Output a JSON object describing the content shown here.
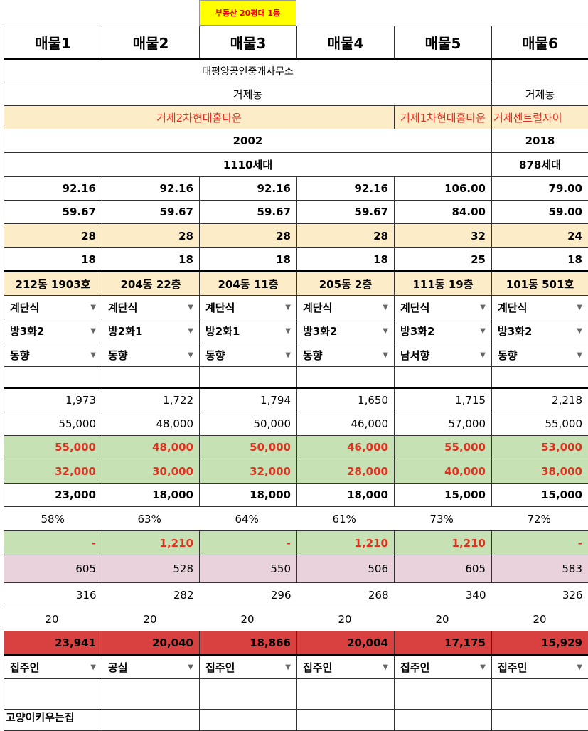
{
  "banner": "부동산 20평대 1등",
  "headers": [
    "매물1",
    "매물2",
    "매물3",
    "매물4",
    "매물5",
    "매물6"
  ],
  "agency": "태평양공인중개사무소",
  "dong": "거제동",
  "dong6": "거제동",
  "complex_main": "거제2차현대홈타운",
  "complex5": "거제1차현대홈타운",
  "complex6": "거제센트럴자이",
  "year": "2002",
  "year6": "2018",
  "households": "1110세대",
  "households6": "878세대",
  "supply_area": [
    "92.16",
    "92.16",
    "92.16",
    "92.16",
    "106.00",
    "79.00"
  ],
  "exclusive_area": [
    "59.67",
    "59.67",
    "59.67",
    "59.67",
    "84.00",
    "59.00"
  ],
  "pyeong": [
    "28",
    "28",
    "28",
    "28",
    "32",
    "24"
  ],
  "pyeong_ex": [
    "18",
    "18",
    "18",
    "18",
    "25",
    "18"
  ],
  "units": [
    "212동 1903호",
    "204동 22층",
    "204동 11층",
    "205동 2층",
    "111동 19층",
    "101동 501호"
  ],
  "structure": [
    "계단식",
    "계단식",
    "계단식",
    "계단식",
    "계단식",
    "계단식"
  ],
  "rooms": [
    "방3화2",
    "방2화1",
    "방2화1",
    "방3화2",
    "방3화2",
    "방3화2"
  ],
  "direction": [
    "동향",
    "동향",
    "동향",
    "동향",
    "남서향",
    "동향"
  ],
  "price_per_pyeong": [
    "1,973",
    "1,722",
    "1,794",
    "1,650",
    "1,715",
    "2,218"
  ],
  "asking": [
    "55,000",
    "48,000",
    "50,000",
    "46,000",
    "57,000",
    "55,000"
  ],
  "deal_price": [
    "55,000",
    "48,000",
    "50,000",
    "46,000",
    "55,000",
    "53,000"
  ],
  "jeonse": [
    "32,000",
    "30,000",
    "32,000",
    "28,000",
    "40,000",
    "38,000"
  ],
  "gap": [
    "23,000",
    "18,000",
    "18,000",
    "18,000",
    "15,000",
    "15,000"
  ],
  "ratio": [
    "58%",
    "63%",
    "64%",
    "61%",
    "73%",
    "72%"
  ],
  "fee": [
    "-",
    "1,210",
    "-",
    "1,210",
    "1,210",
    "-"
  ],
  "tax": [
    "605",
    "528",
    "550",
    "506",
    "605",
    "583"
  ],
  "etc": [
    "316",
    "282",
    "296",
    "268",
    "340",
    "326"
  ],
  "misc": [
    "20",
    "20",
    "20",
    "20",
    "20",
    "20"
  ],
  "total": [
    "23,941",
    "20,040",
    "18,866",
    "20,004",
    "17,175",
    "15,929"
  ],
  "occupancy": [
    "집주인",
    "공실",
    "집주인",
    "집주인",
    "집주인",
    "집주인"
  ],
  "note": "고양이키우는집"
}
